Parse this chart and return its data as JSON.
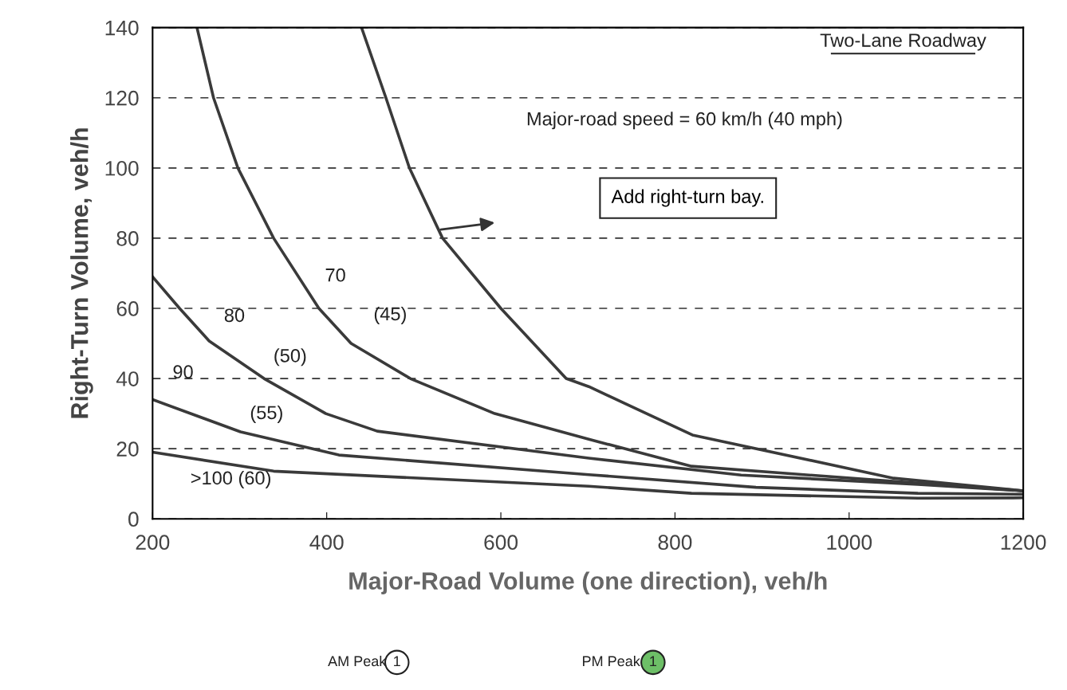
{
  "chart_data": {
    "type": "line",
    "xlabel": "Major-Road Volume (one direction), veh/h",
    "ylabel": "Right-Turn Volume, veh/h",
    "xlim": [
      200,
      1200
    ],
    "xticks": [
      200,
      400,
      600,
      800,
      1000,
      1200
    ],
    "ylim": [
      0,
      140
    ],
    "yticks": [
      0,
      20,
      40,
      60,
      80,
      100,
      120,
      140
    ],
    "grid": "y",
    "line_style": "solid",
    "marker": "none",
    "series": [
      {
        "color": "#3a3a3a",
        "x": [
          440,
          468,
          495,
          533,
          600,
          675,
          701,
          820,
          1051,
          1200
        ],
        "values": [
          140,
          120,
          100,
          80,
          60,
          40,
          37.7,
          23.9,
          11.6,
          8
        ]
      },
      {
        "color": "#3a3a3a",
        "x": [
          251,
          270,
          298,
          339,
          391,
          428,
          496,
          593,
          701,
          819,
          1051,
          1200
        ],
        "values": [
          140,
          120,
          100,
          80,
          60,
          50,
          40,
          30,
          22.7,
          15,
          10.7,
          8
        ]
      },
      {
        "color": "#3a3a3a",
        "x": [
          200,
          231,
          265,
          328,
          399,
          458,
          701,
          876,
          1079,
          1200
        ],
        "values": [
          69,
          60,
          50.7,
          40,
          30,
          25,
          17.3,
          12.5,
          9.8,
          8
        ]
      },
      {
        "color": "#3a3a3a",
        "x": [
          200,
          301,
          414,
          701,
          893,
          1079,
          1200
        ],
        "values": [
          34,
          24.8,
          18.2,
          12.6,
          9,
          7.3,
          7
        ]
      },
      {
        "color": "#3a3a3a",
        "x": [
          200,
          339,
          701,
          819,
          1079,
          1200
        ],
        "values": [
          19,
          13.6,
          9.3,
          7.3,
          5.9,
          6
        ]
      }
    ],
    "annotations": [
      "70",
      "(45)",
      "80",
      "(50)",
      "90",
      "(55)",
      ">100 (60)",
      "Two-Lane Roadway",
      "Major-road speed = 60 km/h (40 mph)",
      "Add right-turn bay.",
      "AM Peak",
      "1",
      "PM Peak",
      "1"
    ]
  }
}
